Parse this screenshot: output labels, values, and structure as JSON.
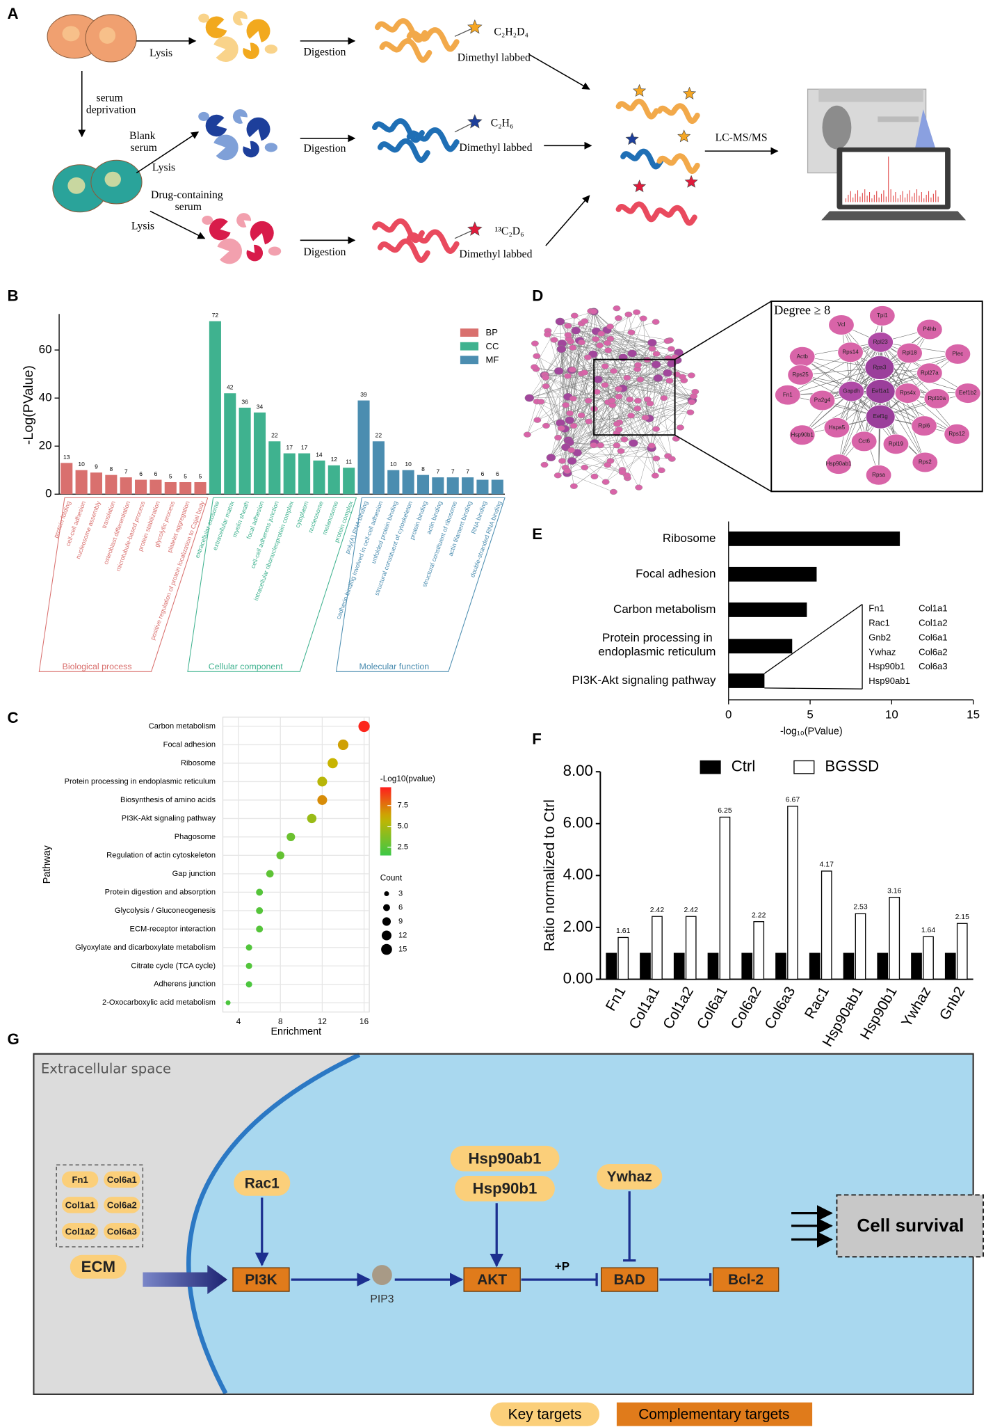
{
  "panel_labels": [
    "A",
    "B",
    "C",
    "D",
    "E",
    "F",
    "G"
  ],
  "panel_a": {
    "labels": [
      "Lysis",
      "Digestion",
      "C₂H₂D₄",
      "Dimethyl labbed",
      "serum deprivation",
      "Blank serum",
      "Lysis",
      "Digestion",
      "C₂H₆",
      "Dimethyl labbed",
      "Drug-containing serum",
      "Lysis",
      "Digestion",
      "¹³C₂D₆",
      "Dimethyl labbed",
      "LC-MS/MS"
    ]
  },
  "chart_data": [
    {
      "type": "bar",
      "ylabel": "-Log(PValue)",
      "data_labels": true,
      "legend": "upper right",
      "categories": [
        "protein folding",
        "cell-cell adhesion",
        "nucleosome assembly",
        "translation",
        "osteoblast differentiation",
        "microtubule-based process",
        "protein stabilization",
        "glycolytic process",
        "platelet aggregation",
        "positive regulation of protein localization to Cajal body",
        "extracellular exosome",
        "extracellular matrix",
        "myelin sheath",
        "focal adhesion",
        "cell-cell adherens junction",
        "intracellular ribonucleoprotein complex",
        "cytoplasm",
        "nucleosome",
        "melanosome",
        "protein complex",
        "poly(A) RNA binding",
        "cadherin binding involved in cell-cell adhesion",
        "unfolded protein binding",
        "structural constituent of cytoskeleton",
        "protein binding",
        "actin binding",
        "structural constituent of ribosome",
        "actin filament binding",
        "RNA binding",
        "double-stranded RNA binding"
      ],
      "series": [
        {
          "name": "BP",
          "color": "#d9706e",
          "values": [
            13,
            10,
            9,
            8,
            7,
            6,
            6,
            5,
            5,
            5,
            null,
            null,
            null,
            null,
            null,
            null,
            null,
            null,
            null,
            null,
            null,
            null,
            null,
            null,
            null,
            null,
            null,
            null,
            null,
            null
          ]
        },
        {
          "name": "CC",
          "color": "#3fb28f",
          "values": [
            null,
            null,
            null,
            null,
            null,
            null,
            null,
            null,
            null,
            null,
            72,
            42,
            36,
            34,
            22,
            17,
            17,
            14,
            12,
            11,
            null,
            null,
            null,
            null,
            null,
            null,
            null,
            null,
            null,
            null
          ]
        },
        {
          "name": "MF",
          "color": "#4b8db0",
          "values": [
            null,
            null,
            null,
            null,
            null,
            null,
            null,
            null,
            null,
            null,
            null,
            null,
            null,
            null,
            null,
            null,
            null,
            null,
            null,
            null,
            39,
            22,
            10,
            10,
            8,
            7,
            7,
            7,
            6,
            6
          ]
        }
      ],
      "group_labels": [
        "Biological process",
        "Cellular component",
        "Molecular function"
      ],
      "ylim": [
        0,
        75
      ],
      "yticks": [
        0,
        20,
        40,
        60
      ]
    },
    {
      "type": "dot",
      "xlabel": "Enrichment",
      "ylabel": "Pathway",
      "grid": true,
      "categories": [
        "Carbon metabolism",
        "Focal adhesion",
        "Ribosome",
        "Protein processing in endoplasmic reticulum",
        "Biosynthesis of amino acids",
        "PI3K-Akt signaling pathway",
        "Phagosome",
        "Regulation of actin cytoskeleton",
        "Gap junction",
        "Protein digestion and absorption",
        "Glycolysis / Gluconeogenesis",
        "ECM-receptor interaction",
        "Glyoxylate and dicarboxylate metabolism",
        "Citrate cycle (TCA cycle)",
        "Adherens junction",
        "2-Oxocarboxylic acid metabolism"
      ],
      "values": [
        16,
        14,
        13,
        12,
        12,
        11,
        9,
        8,
        7,
        6,
        6,
        6,
        5,
        5,
        5,
        3
      ],
      "color_values": [
        9.5,
        6.5,
        6,
        5.5,
        7,
        4.5,
        3,
        2.8,
        2.6,
        2.3,
        2.3,
        2.3,
        2.2,
        2.2,
        2,
        2
      ],
      "size_values": [
        16,
        14,
        13,
        12,
        12,
        11,
        9,
        8,
        7,
        6,
        6,
        6,
        5,
        5,
        5,
        3
      ],
      "xlim": [
        2.5,
        16.5
      ],
      "xticks": [
        4,
        8,
        12,
        16
      ],
      "colorbar_title": "-Log10(pvalue)",
      "clim": [
        1.5,
        9.7
      ],
      "cticks": [
        {
          "value": 7.5,
          "label": "7.5"
        },
        {
          "value": 5,
          "label": "5.0"
        },
        {
          "value": 2.5,
          "label": "2.5"
        }
      ],
      "size_title": "Count",
      "size_legend": [
        3,
        6,
        9,
        12,
        15
      ]
    },
    {
      "type": "barh",
      "xlabel": "-log₁₀(PValue)",
      "color": "#000000",
      "categories": [
        "Ribosome",
        "Focal adhesion",
        "Carbon metabolism",
        "Protein processing in endoplasmic reticulum",
        "PI3K-Akt signaling pathway"
      ],
      "values": [
        10.5,
        5.4,
        4.8,
        3.9,
        2.2
      ],
      "xlim": [
        0,
        15
      ],
      "xticks": [
        0,
        5,
        10,
        15
      ],
      "annotation": [
        "Fn1",
        "Col1a1",
        "Rac1",
        "Col1a2",
        "Gnb2",
        "Col6a1",
        "Ywhaz",
        "Col6a2",
        "Hsp90b1",
        "Col6a3",
        "Hsp90ab1"
      ]
    },
    {
      "type": "grouped_bar",
      "ylabel": "Ratio normalized to Ctrl",
      "legend": "top",
      "categories": [
        "Fn1",
        "Col1a1",
        "Col1a2",
        "Col6a1",
        "Col6a2",
        "Col6a3",
        "Rac1",
        "Hsp90ab1",
        "Hsp90b1",
        "Ywhaz",
        "Gnb2"
      ],
      "series": [
        {
          "name": "Ctrl",
          "color": "#000000",
          "values": [
            1,
            1,
            1,
            1,
            1,
            1,
            1,
            1,
            1,
            1,
            1
          ]
        },
        {
          "name": "BGSSD",
          "color": "#ffffff",
          "data_labels": true,
          "values": [
            1.61,
            2.42,
            2.42,
            6.25,
            2.22,
            6.67,
            4.17,
            2.53,
            3.16,
            1.64,
            2.15
          ]
        }
      ],
      "ylim": [
        0,
        8
      ],
      "yticks": [
        {
          "value": 0,
          "label": "0.00"
        },
        {
          "value": 2,
          "label": "2.00"
        },
        {
          "value": 4,
          "label": "4.00"
        },
        {
          "value": 6,
          "label": "6.00"
        },
        {
          "value": 8,
          "label": "8.00"
        }
      ]
    }
  ],
  "panel_d": {
    "title": "Degree ≥ 8",
    "nodes": [
      "Tpi1",
      "Vcl",
      "P4hb",
      "Rpl23",
      "Actb",
      "Rps14",
      "Rpl18",
      "Plec",
      "Rps25",
      "Rps3",
      "Rpl27a",
      "Rps4x",
      "Rpl10a",
      "Eef1b2",
      "Fn1",
      "Gapdh",
      "Eef1a1",
      "Pa2g4",
      "Eef1g",
      "Hspa5",
      "Rpl6",
      "Rps12",
      "Hsp90b1",
      "Cct6",
      "Rpl19",
      "Hsp90ab1",
      "Rpsa",
      "Rps2"
    ]
  },
  "panel_g": {
    "compartment": "Extracellular space",
    "ecm_components": [
      "Fn1",
      "Col6a1",
      "Col1a1",
      "Col6a2",
      "Col1a2",
      "Col6a3"
    ],
    "ecm": "ECM",
    "rac1": "Rac1",
    "pi3k": "PI3K",
    "pip3": "PIP3",
    "hsp": [
      "Hsp90ab1",
      "Hsp90b1"
    ],
    "akt": "AKT",
    "phosphorylation": "+P",
    "ywhaz": "Ywhaz",
    "bad": "BAD",
    "bcl2": "Bcl-2",
    "outcome": "Cell survival",
    "legend": [
      "Key targets",
      "Complementary targets"
    ]
  }
}
